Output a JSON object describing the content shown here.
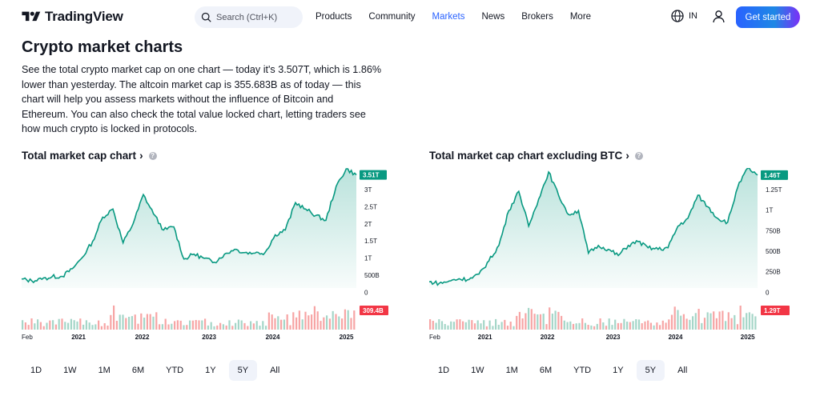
{
  "header": {
    "logo_text": "TradingView",
    "search_placeholder": "Search (Ctrl+K)",
    "nav": [
      "Products",
      "Community",
      "Markets",
      "News",
      "Brokers",
      "More"
    ],
    "active_nav": "Markets",
    "lang": "IN",
    "cta_label": "Get started",
    "accent_color": "#2962ff"
  },
  "page": {
    "title": "Crypto market charts",
    "intro": "See the total crypto market cap on one chart — today it's 3.507T, which is 1.86% lower than yesterday. The altcoin market cap is 355.683B as of today — this chart will help you assess markets without the influence of Bitcoin and Ethereum. You can also check the total value locked chart, letting traders see how much crypto is locked in protocols."
  },
  "charts": [
    {
      "title": "Total market cap chart",
      "chevron": "›",
      "last_value_badge": "3.51T",
      "volume_badge": "309.4B",
      "y_ticks": [
        "3T",
        "2.5T",
        "2T",
        "1.5T",
        "1T",
        "500B",
        "0"
      ],
      "x_ticks": [
        "Feb",
        "2021",
        "2022",
        "2023",
        "2024",
        "2025"
      ],
      "timeframes": [
        "1D",
        "1W",
        "1M",
        "6M",
        "YTD",
        "1Y",
        "5Y",
        "All"
      ],
      "active_timeframe": "5Y"
    },
    {
      "title": "Total market cap chart excluding BTC",
      "chevron": "›",
      "last_value_badge": "1.46T",
      "volume_badge": "1.29T",
      "y_ticks": [
        "1.25T",
        "1T",
        "750B",
        "500B",
        "250B",
        "0"
      ],
      "x_ticks": [
        "Feb",
        "2021",
        "2022",
        "2023",
        "2024",
        "2025"
      ],
      "timeframes": [
        "1D",
        "1W",
        "1M",
        "6M",
        "YTD",
        "1Y",
        "5Y",
        "All"
      ],
      "active_timeframe": "5Y"
    }
  ],
  "chart_data": [
    {
      "type": "area",
      "title": "Total market cap chart",
      "unit": "T",
      "x": [
        "2020-02",
        "2020-04",
        "2020-06",
        "2020-08",
        "2020-10",
        "2020-12",
        "2021-01",
        "2021-02",
        "2021-04",
        "2021-05",
        "2021-07",
        "2021-09",
        "2021-11",
        "2021-12",
        "2022-02",
        "2022-04",
        "2022-06",
        "2022-08",
        "2022-10",
        "2022-12",
        "2023-02",
        "2023-04",
        "2023-06",
        "2023-08",
        "2023-10",
        "2023-12",
        "2024-02",
        "2024-03",
        "2024-05",
        "2024-07",
        "2024-09",
        "2024-11",
        "2024-12",
        "2025-01"
      ],
      "values": [
        0.28,
        0.22,
        0.27,
        0.35,
        0.36,
        0.6,
        0.95,
        1.45,
        2.2,
        2.45,
        1.4,
        2.0,
        2.9,
        2.3,
        1.8,
        1.9,
        0.9,
        1.05,
        0.92,
        0.8,
        1.05,
        1.2,
        1.1,
        1.08,
        1.1,
        1.65,
        1.8,
        2.65,
        2.45,
        2.25,
        2.1,
        3.15,
        3.7,
        3.51
      ],
      "volume_color_up": "#f7a5a5",
      "volume_color_down": "#a5d6c8",
      "line_color": "#089981",
      "ylim": [
        0,
        3.6
      ]
    },
    {
      "type": "area",
      "title": "Total market cap chart excluding BTC",
      "unit": "T",
      "x": [
        "2020-02",
        "2020-04",
        "2020-06",
        "2020-08",
        "2020-10",
        "2020-12",
        "2021-01",
        "2021-02",
        "2021-04",
        "2021-05",
        "2021-07",
        "2021-09",
        "2021-11",
        "2021-12",
        "2022-02",
        "2022-04",
        "2022-06",
        "2022-08",
        "2022-10",
        "2022-12",
        "2023-02",
        "2023-04",
        "2023-06",
        "2023-08",
        "2023-10",
        "2023-12",
        "2024-02",
        "2024-03",
        "2024-05",
        "2024-07",
        "2024-09",
        "2024-11",
        "2024-12",
        "2025-01"
      ],
      "values": [
        0.08,
        0.06,
        0.09,
        0.12,
        0.11,
        0.18,
        0.35,
        0.55,
        1.0,
        1.25,
        0.8,
        1.15,
        1.5,
        1.2,
        0.95,
        1.0,
        0.45,
        0.55,
        0.5,
        0.42,
        0.55,
        0.6,
        0.52,
        0.5,
        0.52,
        0.8,
        0.9,
        1.2,
        1.05,
        0.9,
        0.85,
        1.3,
        1.55,
        1.46
      ],
      "volume_color_up": "#f7a5a5",
      "volume_color_down": "#a5d6c8",
      "line_color": "#089981",
      "ylim": [
        0,
        1.5
      ]
    }
  ]
}
